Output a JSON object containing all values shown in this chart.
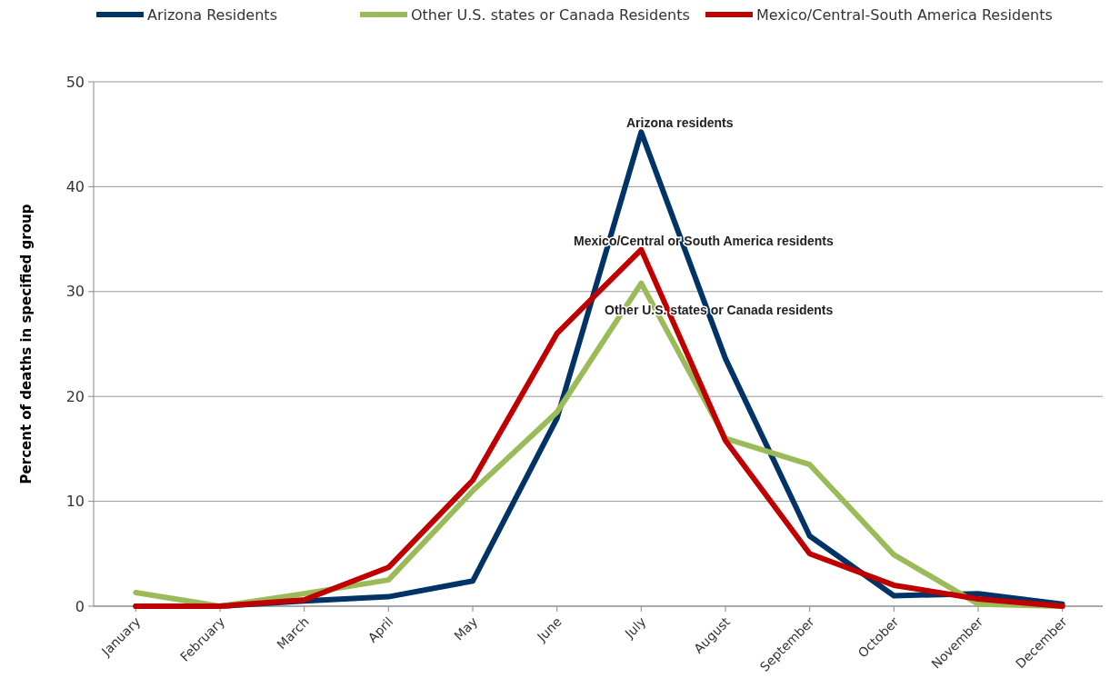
{
  "chart_data": {
    "type": "line",
    "ylabel": "Percent of deaths in specified group",
    "categories": [
      "January",
      "February",
      "March",
      "April",
      "May",
      "June",
      "July",
      "August",
      "September",
      "October",
      "November",
      "December"
    ],
    "series": [
      {
        "name": "Arizona Residents",
        "color": "#003366",
        "values": [
          0,
          0,
          0.5,
          0.9,
          2.4,
          17.9,
          45.2,
          23.6,
          6.7,
          1,
          1.2,
          0.2
        ]
      },
      {
        "name": "Other U.S. states or Canada Residents",
        "color": "#9bbb59",
        "values": [
          1.3,
          0,
          1.2,
          2.5,
          11,
          18.5,
          30.8,
          16,
          13.5,
          4.9,
          0.2,
          0
        ]
      },
      {
        "name": "Mexico/Central-South America Residents",
        "color": "#c00000",
        "values": [
          0,
          0,
          0.6,
          3.7,
          12,
          26,
          34,
          15.8,
          5,
          2,
          0.7,
          0
        ]
      }
    ],
    "ylim": [
      0,
      50
    ],
    "yticks": [
      0,
      10,
      20,
      30,
      40,
      50
    ],
    "grid": "y",
    "legend": "top",
    "marker": "none",
    "line_style": "solid",
    "annotations": [
      "Arizona residents",
      "Mexico/Central or South America residents",
      "Other U.S. states or Canada residents"
    ]
  }
}
